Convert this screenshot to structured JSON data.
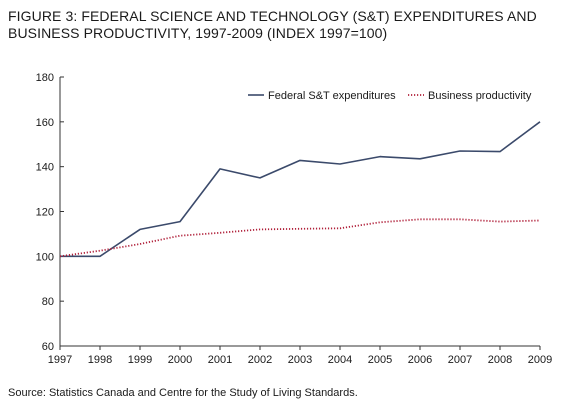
{
  "figure": {
    "title": "FIGURE 3: FEDERAL SCIENCE AND TECHNOLOGY (S&T) EXPENDITURES AND BUSINESS PRODUCTIVITY, 1997-2009 (INDEX 1997=100)",
    "source": "Source: Statistics Canada and Centre for the Study of Living Standards."
  },
  "chart_data": {
    "type": "line",
    "title": "FIGURE 3: FEDERAL SCIENCE AND TECHNOLOGY (S&T) EXPENDITURES AND BUSINESS PRODUCTIVITY, 1997-2009 (INDEX 1997=100)",
    "xlabel": "",
    "ylabel": "",
    "x": [
      "1997",
      "1998",
      "1999",
      "2000",
      "2001",
      "2002",
      "2003",
      "2004",
      "2005",
      "2006",
      "2007",
      "2008",
      "2009"
    ],
    "ylim": [
      60,
      180
    ],
    "yticks": [
      60,
      80,
      100,
      120,
      140,
      160,
      180
    ],
    "grid": false,
    "legend_position": "top-right",
    "series": [
      {
        "name": "Federal S&T expenditures",
        "style": "solid",
        "color": "#3b4a6b",
        "values": [
          100,
          100,
          112,
          115.5,
          139,
          135,
          142.8,
          141.2,
          144.5,
          143.5,
          147,
          146.7,
          160
        ]
      },
      {
        "name": "Business productivity",
        "style": "dotted",
        "color": "#b0203a",
        "values": [
          100,
          102.5,
          105.5,
          109.2,
          110.5,
          112,
          112.3,
          112.5,
          115.2,
          116.5,
          116.5,
          115.5,
          116
        ]
      }
    ]
  }
}
